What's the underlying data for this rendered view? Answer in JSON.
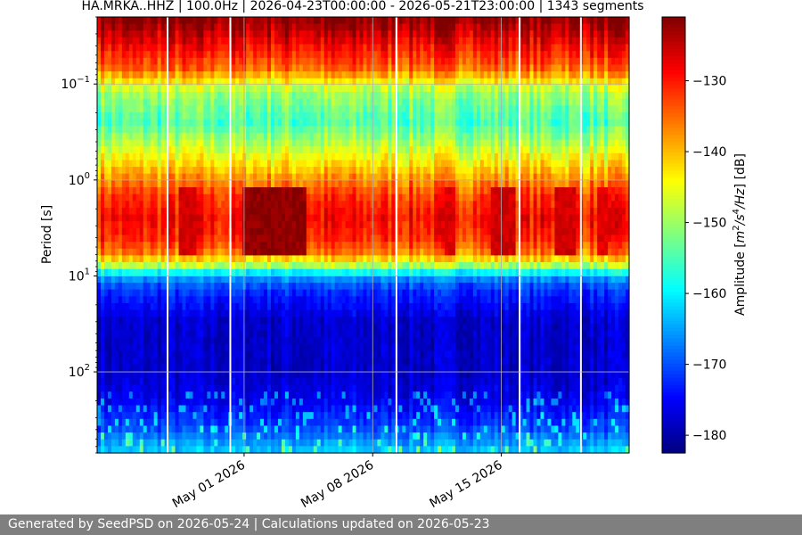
{
  "footer": {
    "text": "Generated by SeedPSD on 2026-05-24 | Calculations updated on 2026-05-23"
  },
  "chart_data": {
    "type": "heatmap",
    "title": "HA.MRKA..HHZ | 100.0Hz | 2026-04-23T00:00:00 - 2026-05-21T23:00:00 | 1343 segments",
    "xlabel": "",
    "ylabel": "Period [s]",
    "x_range": [
      "2026-04-23T00:00:00",
      "2026-05-21T23:00:00"
    ],
    "x_ticks": [
      {
        "date": "2026-05-01",
        "label": "May 01 2026"
      },
      {
        "date": "2026-05-08",
        "label": "May 08 2026"
      },
      {
        "date": "2026-05-15",
        "label": "May 15 2026"
      }
    ],
    "y_scale": "log",
    "y_inverted": true,
    "y_range": [
      0.02,
      700
    ],
    "y_ticks": [
      {
        "value": 0.1,
        "base": "10",
        "exp": "−1"
      },
      {
        "value": 1,
        "base": "10",
        "exp": "0"
      },
      {
        "value": 10,
        "base": "10",
        "exp": "1"
      },
      {
        "value": 100,
        "base": "10",
        "exp": "2"
      }
    ],
    "grid": true,
    "colormap": "jet",
    "colorbar": {
      "label_prefix": "Amplitude [",
      "label_unit_base": "m",
      "label_unit_exp1": "2",
      "label_unit_mid": "/s",
      "label_unit_exp2": "4",
      "label_unit_end": "/Hz",
      "label_suffix": "] [dB]",
      "range": [
        -182.5,
        -121
      ],
      "ticks": [
        -130,
        -140,
        -150,
        -160,
        -170,
        -180
      ]
    },
    "period_profile": [
      {
        "period": 0.02,
        "db": -121
      },
      {
        "period": 0.029,
        "db": -125
      },
      {
        "period": 0.045,
        "db": -130
      },
      {
        "period": 0.07,
        "db": -135
      },
      {
        "period": 0.12,
        "db": -150
      },
      {
        "period": 0.25,
        "db": -155
      },
      {
        "period": 0.45,
        "db": -148
      },
      {
        "period": 0.8,
        "db": -140
      },
      {
        "period": 1.5,
        "db": -132
      },
      {
        "period": 2.5,
        "db": -129
      },
      {
        "period": 4,
        "db": -131
      },
      {
        "period": 6,
        "db": -137
      },
      {
        "period": 8,
        "db": -150
      },
      {
        "period": 10,
        "db": -165
      },
      {
        "period": 14,
        "db": -172
      },
      {
        "period": 30,
        "db": -178
      },
      {
        "period": 100,
        "db": -178
      },
      {
        "period": 200,
        "db": -176
      },
      {
        "period": 400,
        "db": -170
      },
      {
        "period": 700,
        "db": -162
      }
    ],
    "strong_microseism_intervals": [
      {
        "start": "2026-05-01T00:00:00",
        "end": "2026-05-04T08:00:00",
        "db": -122
      },
      {
        "start": "2026-04-27T12:00:00",
        "end": "2026-04-28T12:00:00",
        "db": -126
      },
      {
        "start": "2026-05-12T00:00:00",
        "end": "2026-05-12T12:00:00",
        "db": -127
      },
      {
        "start": "2026-05-14T12:00:00",
        "end": "2026-05-15T20:00:00",
        "db": -126
      },
      {
        "start": "2026-05-18T00:00:00",
        "end": "2026-05-19T00:00:00",
        "db": -126
      },
      {
        "start": "2026-05-20T04:00:00",
        "end": "2026-05-20T20:00:00",
        "db": -127
      }
    ],
    "gaps": [
      "2026-04-26T20:00:00",
      "2026-04-30T06:00:00",
      "2026-05-09T07:00:00",
      "2026-05-16T00:00:00",
      "2026-05-19T08:00:00"
    ]
  }
}
